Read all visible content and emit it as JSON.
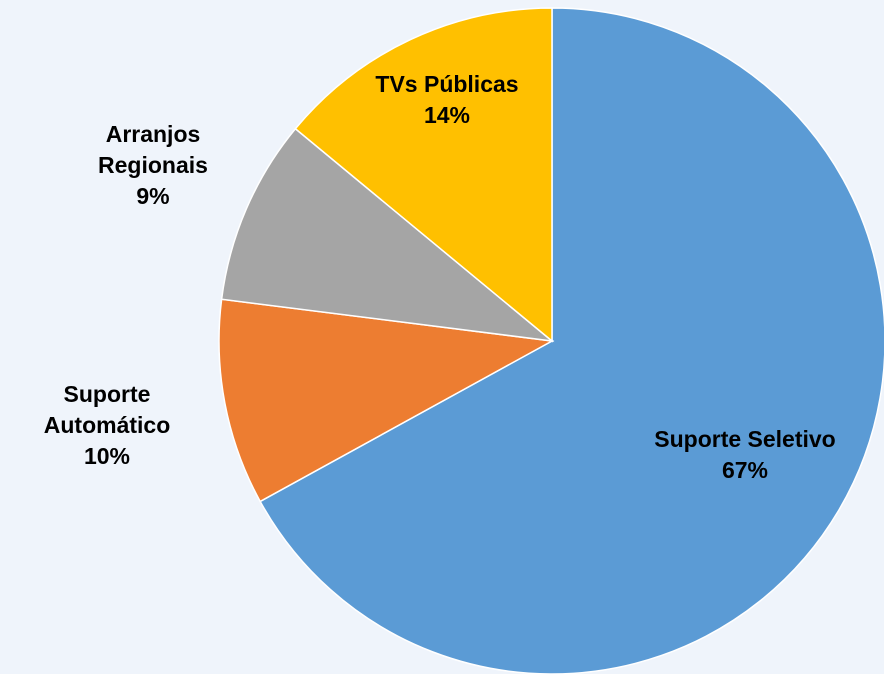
{
  "chart_data": {
    "type": "pie",
    "categories": [
      "Suporte Seletivo",
      "Suporte Automático",
      "Arranjos Regionais",
      "TVs Públicas"
    ],
    "values": [
      67,
      10,
      9,
      14
    ],
    "value_labels": [
      "67%",
      "10%",
      "9%",
      "14%"
    ],
    "colors": [
      "#5b9bd5",
      "#ed7d31",
      "#a5a5a5",
      "#ffc000"
    ]
  }
}
